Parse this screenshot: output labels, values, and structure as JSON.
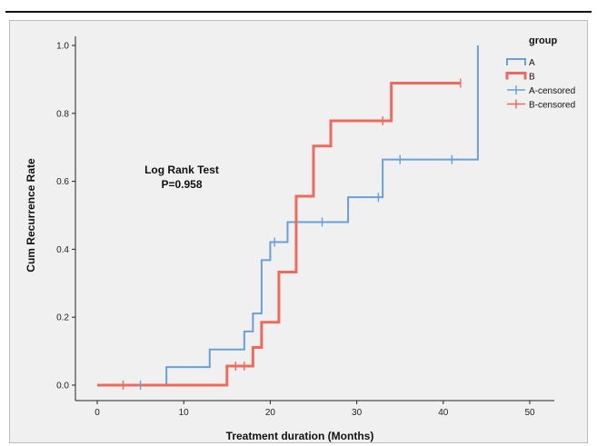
{
  "chart_data": {
    "type": "line",
    "subtype": "step",
    "title": "",
    "xlabel": "Treatment duration (Months)",
    "ylabel": "Cum Recurrence Rate",
    "xlim": [
      0,
      50
    ],
    "ylim": [
      0,
      1.0
    ],
    "xticks": [
      "0",
      "10",
      "20",
      "30",
      "40",
      "50"
    ],
    "yticks": [
      "0.0",
      "0.2",
      "0.4",
      "0.6",
      "0.8",
      "1.0"
    ],
    "grid": false,
    "legend": {
      "title": "group",
      "placement": "right",
      "entries": [
        "A",
        "B",
        "A-censored",
        "B-censored"
      ]
    },
    "annotation": [
      "Log Rank Test",
      "P=0.958"
    ],
    "colors": {
      "A": "#6a9fd8",
      "B": "#ef6a5c"
    },
    "series": [
      {
        "name": "A",
        "color": "#6a9fd8",
        "steps": [
          [
            0,
            0
          ],
          [
            8,
            0.053
          ],
          [
            13,
            0.105
          ],
          [
            17,
            0.158
          ],
          [
            18,
            0.211
          ],
          [
            19,
            0.368
          ],
          [
            20,
            0.421
          ],
          [
            22,
            0.48
          ],
          [
            29,
            0.553
          ],
          [
            33,
            0.664
          ],
          [
            44,
            1.0
          ]
        ],
        "end_x": 44
      },
      {
        "name": "B",
        "color": "#ef6a5c",
        "steps": [
          [
            0,
            0
          ],
          [
            15,
            0.056
          ],
          [
            18,
            0.111
          ],
          [
            19,
            0.185
          ],
          [
            21,
            0.333
          ],
          [
            23,
            0.556
          ],
          [
            25,
            0.704
          ],
          [
            27,
            0.778
          ],
          [
            34,
            0.889
          ]
        ],
        "end_x": 42
      }
    ],
    "censored": [
      {
        "series": "A-censored",
        "points": [
          [
            5,
            0
          ],
          [
            20.5,
            0.421
          ],
          [
            26,
            0.48
          ],
          [
            32.5,
            0.553
          ],
          [
            35,
            0.664
          ],
          [
            41,
            0.664
          ]
        ]
      },
      {
        "series": "B-censored",
        "points": [
          [
            3,
            0
          ],
          [
            16,
            0.056
          ],
          [
            17,
            0.056
          ],
          [
            33,
            0.778
          ],
          [
            42,
            0.889
          ]
        ]
      }
    ]
  }
}
